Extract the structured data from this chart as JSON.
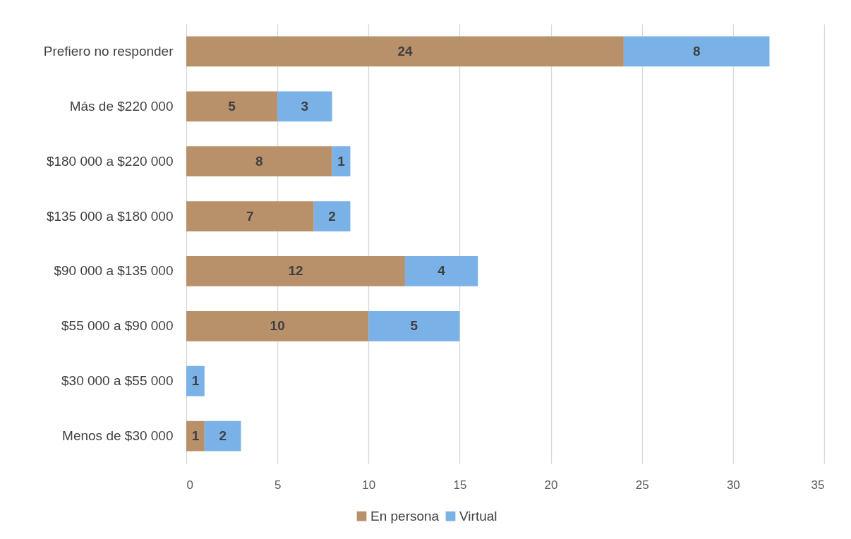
{
  "chart_data": {
    "type": "bar",
    "orientation": "horizontal",
    "stacked": true,
    "categories": [
      "Prefiero no responder",
      "Más de $220 000",
      "$180 000 a $220 000",
      "$135 000 a $180 000",
      "$90 000 a $135 000",
      "$55 000 a $90 000",
      "$30 000 a $55 000",
      "Menos de $30 000"
    ],
    "series": [
      {
        "name": "En persona",
        "color": "#b8916b",
        "values": [
          24,
          5,
          8,
          7,
          12,
          10,
          null,
          1
        ]
      },
      {
        "name": "Virtual",
        "color": "#7ab2e8",
        "values": [
          8,
          3,
          1,
          2,
          4,
          5,
          1,
          2
        ]
      }
    ],
    "xlim": [
      0,
      35
    ],
    "xticks": [
      0,
      5,
      10,
      15,
      20,
      25,
      30,
      35
    ],
    "grid": "x",
    "legend": "bottom",
    "data_labels": true
  }
}
